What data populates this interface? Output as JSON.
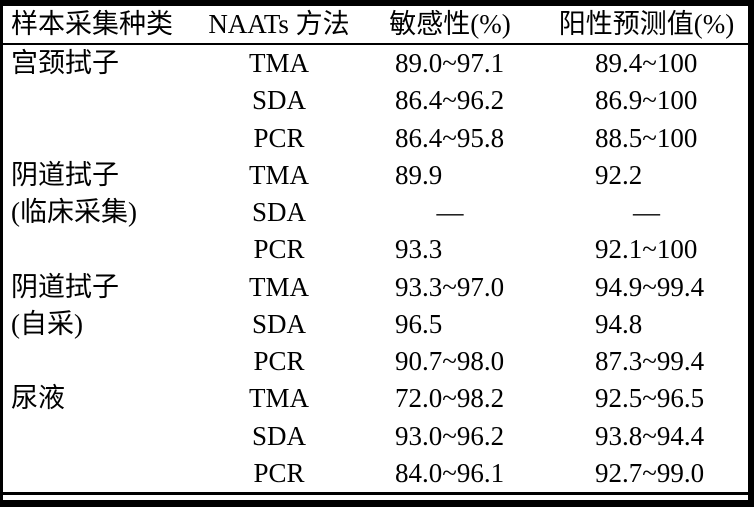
{
  "table": {
    "title_semantic": "NAATs methods performance by sample collection type",
    "headers": [
      "样本采集种类",
      "NAATs 方法",
      "敏感性(%)",
      "阳性预测值(%)"
    ],
    "rows": [
      {
        "sample": "宫颈拭子",
        "method": "TMA",
        "sensitivity": "89.0~97.1",
        "ppv": "89.4~100"
      },
      {
        "sample": "",
        "method": "SDA",
        "sensitivity": "86.4~96.2",
        "ppv": "86.9~100"
      },
      {
        "sample": "",
        "method": "PCR",
        "sensitivity": "86.4~95.8",
        "ppv": "88.5~100"
      },
      {
        "sample": "阴道拭子",
        "method": "TMA",
        "sensitivity": "89.9",
        "ppv": "92.2"
      },
      {
        "sample": "(临床采集)",
        "method": "SDA",
        "sensitivity": "—",
        "ppv": "—"
      },
      {
        "sample": "",
        "method": "PCR",
        "sensitivity": "93.3",
        "ppv": "92.1~100"
      },
      {
        "sample": "阴道拭子",
        "method": "TMA",
        "sensitivity": "93.3~97.0",
        "ppv": "94.9~99.4"
      },
      {
        "sample": "(自采)",
        "method": "SDA",
        "sensitivity": "96.5",
        "ppv": "94.8"
      },
      {
        "sample": "",
        "method": "PCR",
        "sensitivity": "90.7~98.0",
        "ppv": "87.3~99.4"
      },
      {
        "sample": "尿液",
        "method": "TMA",
        "sensitivity": "72.0~98.2",
        "ppv": "92.5~96.5"
      },
      {
        "sample": "",
        "method": "SDA",
        "sensitivity": "93.0~96.2",
        "ppv": "93.8~94.4"
      },
      {
        "sample": "",
        "method": "PCR",
        "sensitivity": "84.0~96.1",
        "ppv": "92.7~99.0"
      }
    ],
    "colors": {
      "text": "#000000",
      "background": "#ffffff",
      "rule": "#000000"
    }
  }
}
